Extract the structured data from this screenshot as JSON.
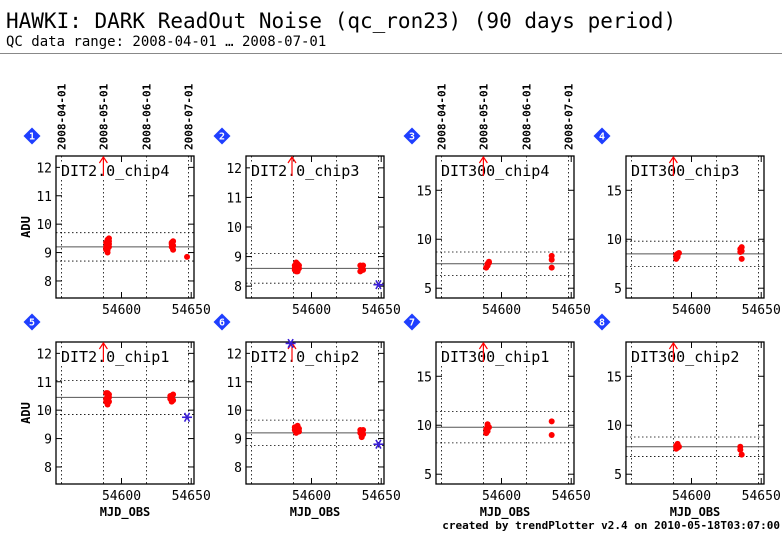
{
  "header": {
    "title": "HAWKI: DARK ReadOut Noise (qc_ron23) (90 days period)",
    "subtitle": "QC data range: 2008-04-01 … 2008-07-01"
  },
  "footer": {
    "credit": "created by trendPlotter v2.4 on 2010-05-18T03:07:00"
  },
  "colors": {
    "data": "#ff0000",
    "outlier": "#3a1fd6",
    "badge": "#1f3fff",
    "axis": "#000000",
    "median": "#555555"
  },
  "date_labels": [
    "2008-04-01",
    "2008-05-01",
    "2008-06-01",
    "2008-07-01"
  ],
  "date_mjd": [
    54557,
    54587,
    54618,
    54648
  ],
  "x_axis": {
    "label": "MJD_OBS",
    "range": [
      54553,
      54652
    ],
    "ticks": [
      54600,
      54650
    ]
  },
  "y_axis_label": "ADU",
  "chart_data": [
    {
      "type": "scatter",
      "index": "1",
      "title": "DIT2.0_chip4",
      "ylim": [
        7.4,
        12.4
      ],
      "yticks": [
        8,
        9,
        10,
        11,
        12
      ],
      "median": 9.2,
      "band_inner": [
        8.7,
        9.7
      ],
      "points": [
        [
          54589,
          9.1
        ],
        [
          54589,
          9.2
        ],
        [
          54590,
          9.3
        ],
        [
          54590,
          9.4
        ],
        [
          54590,
          9.1
        ],
        [
          54591,
          9.5
        ],
        [
          54591,
          9.2
        ],
        [
          54591,
          9.3
        ],
        [
          54590,
          9.0
        ],
        [
          54589,
          9.35
        ],
        [
          54590,
          9.25
        ],
        [
          54591,
          9.4
        ],
        [
          54589,
          9.15
        ],
        [
          54590,
          9.45
        ],
        [
          54636,
          9.2
        ],
        [
          54636,
          9.3
        ],
        [
          54637,
          9.1
        ],
        [
          54637,
          9.4
        ],
        [
          54636,
          9.35
        ],
        [
          54637,
          9.25
        ],
        [
          54647,
          8.85
        ]
      ],
      "outliers": [],
      "arrows": [
        54587
      ]
    },
    {
      "type": "scatter",
      "index": "2",
      "title": "DIT2.0_chip3",
      "ylim": [
        7.6,
        12.4
      ],
      "yticks": [
        8,
        9,
        10,
        11,
        12
      ],
      "median": 8.6,
      "band_inner": [
        8.1,
        9.1
      ],
      "points": [
        [
          54588,
          8.7
        ],
        [
          54588,
          8.6
        ],
        [
          54589,
          8.8
        ],
        [
          54589,
          8.5
        ],
        [
          54590,
          8.65
        ],
        [
          54590,
          8.75
        ],
        [
          54591,
          8.6
        ],
        [
          54588,
          8.55
        ],
        [
          54589,
          8.7
        ],
        [
          54591,
          8.7
        ],
        [
          54590,
          8.5
        ],
        [
          54635,
          8.7
        ],
        [
          54635,
          8.5
        ],
        [
          54636,
          8.6
        ],
        [
          54636,
          8.65
        ],
        [
          54637,
          8.55
        ],
        [
          54637,
          8.7
        ]
      ],
      "outliers": [
        [
          54648,
          8.05
        ]
      ],
      "arrows": [
        54586
      ]
    },
    {
      "type": "scatter",
      "index": "3",
      "title": "DIT300_chip4",
      "ylim": [
        4.0,
        18.5
      ],
      "yticks": [
        5,
        10,
        15
      ],
      "median": 7.5,
      "band_inner": [
        6.3,
        8.7
      ],
      "points": [
        [
          54589,
          7.1
        ],
        [
          54590,
          7.3
        ],
        [
          54590,
          7.5
        ],
        [
          54591,
          7.6
        ],
        [
          54590,
          7.4
        ],
        [
          54591,
          7.7
        ],
        [
          54636,
          7.9
        ],
        [
          54636,
          8.3
        ],
        [
          54636,
          7.1
        ]
      ],
      "outliers": [],
      "arrows": [
        54587
      ]
    },
    {
      "type": "scatter",
      "index": "4",
      "title": "DIT300_chip3",
      "ylim": [
        4.0,
        18.5
      ],
      "yticks": [
        5,
        10,
        15
      ],
      "median": 8.5,
      "band_inner": [
        7.2,
        9.8
      ],
      "points": [
        [
          54589,
          8.0
        ],
        [
          54589,
          8.4
        ],
        [
          54590,
          8.5
        ],
        [
          54590,
          8.2
        ],
        [
          54591,
          8.6
        ],
        [
          54635,
          8.7
        ],
        [
          54635,
          9.0
        ],
        [
          54636,
          9.2
        ],
        [
          54636,
          8.8
        ],
        [
          54636,
          8.0
        ]
      ],
      "outliers": [],
      "arrows": [
        54587
      ]
    },
    {
      "type": "scatter",
      "index": "5",
      "title": "DIT2.0_chip1",
      "ylim": [
        7.4,
        12.4
      ],
      "yticks": [
        8,
        9,
        10,
        11,
        12
      ],
      "median": 10.45,
      "band_inner": [
        9.85,
        11.05
      ],
      "points": [
        [
          54589,
          10.3
        ],
        [
          54589,
          10.4
        ],
        [
          54590,
          10.5
        ],
        [
          54590,
          10.6
        ],
        [
          54590,
          10.2
        ],
        [
          54591,
          10.45
        ],
        [
          54591,
          10.3
        ],
        [
          54591,
          10.55
        ],
        [
          54589,
          10.6
        ],
        [
          54590,
          10.35
        ],
        [
          54635,
          10.4
        ],
        [
          54635,
          10.5
        ],
        [
          54636,
          10.3
        ],
        [
          54636,
          10.45
        ],
        [
          54637,
          10.35
        ],
        [
          54637,
          10.55
        ]
      ],
      "outliers": [
        [
          54647,
          9.75
        ]
      ],
      "arrows": [
        54587
      ]
    },
    {
      "type": "scatter",
      "index": "6",
      "title": "DIT2.0_chip2",
      "ylim": [
        7.4,
        12.4
      ],
      "yticks": [
        8,
        9,
        10,
        11,
        12
      ],
      "median": 9.2,
      "band_inner": [
        8.75,
        9.65
      ],
      "points": [
        [
          54588,
          9.3
        ],
        [
          54588,
          9.4
        ],
        [
          54589,
          9.35
        ],
        [
          54589,
          9.2
        ],
        [
          54590,
          9.45
        ],
        [
          54590,
          9.3
        ],
        [
          54591,
          9.35
        ],
        [
          54591,
          9.25
        ],
        [
          54635,
          9.2
        ],
        [
          54635,
          9.3
        ],
        [
          54636,
          9.1
        ],
        [
          54636,
          9.25
        ],
        [
          54637,
          9.15
        ],
        [
          54637,
          9.3
        ],
        [
          54636,
          9.05
        ]
      ],
      "outliers": [
        [
          54585,
          12.35
        ],
        [
          54648,
          8.8
        ]
      ],
      "arrows": [
        54586
      ]
    },
    {
      "type": "scatter",
      "index": "7",
      "title": "DIT300_chip1",
      "ylim": [
        4.0,
        18.5
      ],
      "yticks": [
        5,
        10,
        15
      ],
      "median": 9.8,
      "band_inner": [
        8.2,
        11.4
      ],
      "points": [
        [
          54589,
          9.2
        ],
        [
          54589,
          9.6
        ],
        [
          54590,
          9.9
        ],
        [
          54590,
          10.1
        ],
        [
          54591,
          9.8
        ],
        [
          54590,
          9.4
        ],
        [
          54636,
          10.4
        ],
        [
          54636,
          9.0
        ]
      ],
      "outliers": [],
      "arrows": [
        54587
      ]
    },
    {
      "type": "scatter",
      "index": "8",
      "title": "DIT300_chip2",
      "ylim": [
        4.0,
        18.5
      ],
      "yticks": [
        5,
        10,
        15
      ],
      "median": 7.8,
      "band_inner": [
        6.8,
        8.8
      ],
      "points": [
        [
          54589,
          7.6
        ],
        [
          54589,
          7.9
        ],
        [
          54590,
          8.1
        ],
        [
          54590,
          7.7
        ],
        [
          54591,
          7.8
        ],
        [
          54635,
          7.8
        ],
        [
          54635,
          7.5
        ],
        [
          54636,
          7.0
        ]
      ],
      "outliers": [],
      "arrows": [
        54587
      ]
    }
  ]
}
